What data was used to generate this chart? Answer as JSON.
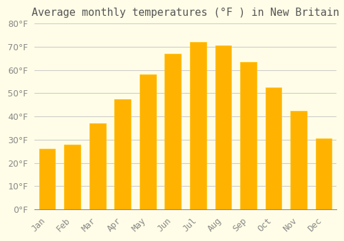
{
  "months": [
    "Jan",
    "Feb",
    "Mar",
    "Apr",
    "May",
    "Jun",
    "Jul",
    "Aug",
    "Sep",
    "Oct",
    "Nov",
    "Dec"
  ],
  "temperatures": [
    26,
    28,
    37,
    47.5,
    58,
    67,
    72,
    70.5,
    63.5,
    52.5,
    42.5,
    30.5
  ],
  "title": "Average monthly temperatures (°F ) in New Britain",
  "bar_color": "#FFA500",
  "bar_edge_color": "#FFB700",
  "ylim": [
    0,
    80
  ],
  "ytick_step": 10,
  "bg_color": "#FFFDE7",
  "grid_color": "#CCCCCC",
  "title_fontsize": 11,
  "tick_fontsize": 9
}
